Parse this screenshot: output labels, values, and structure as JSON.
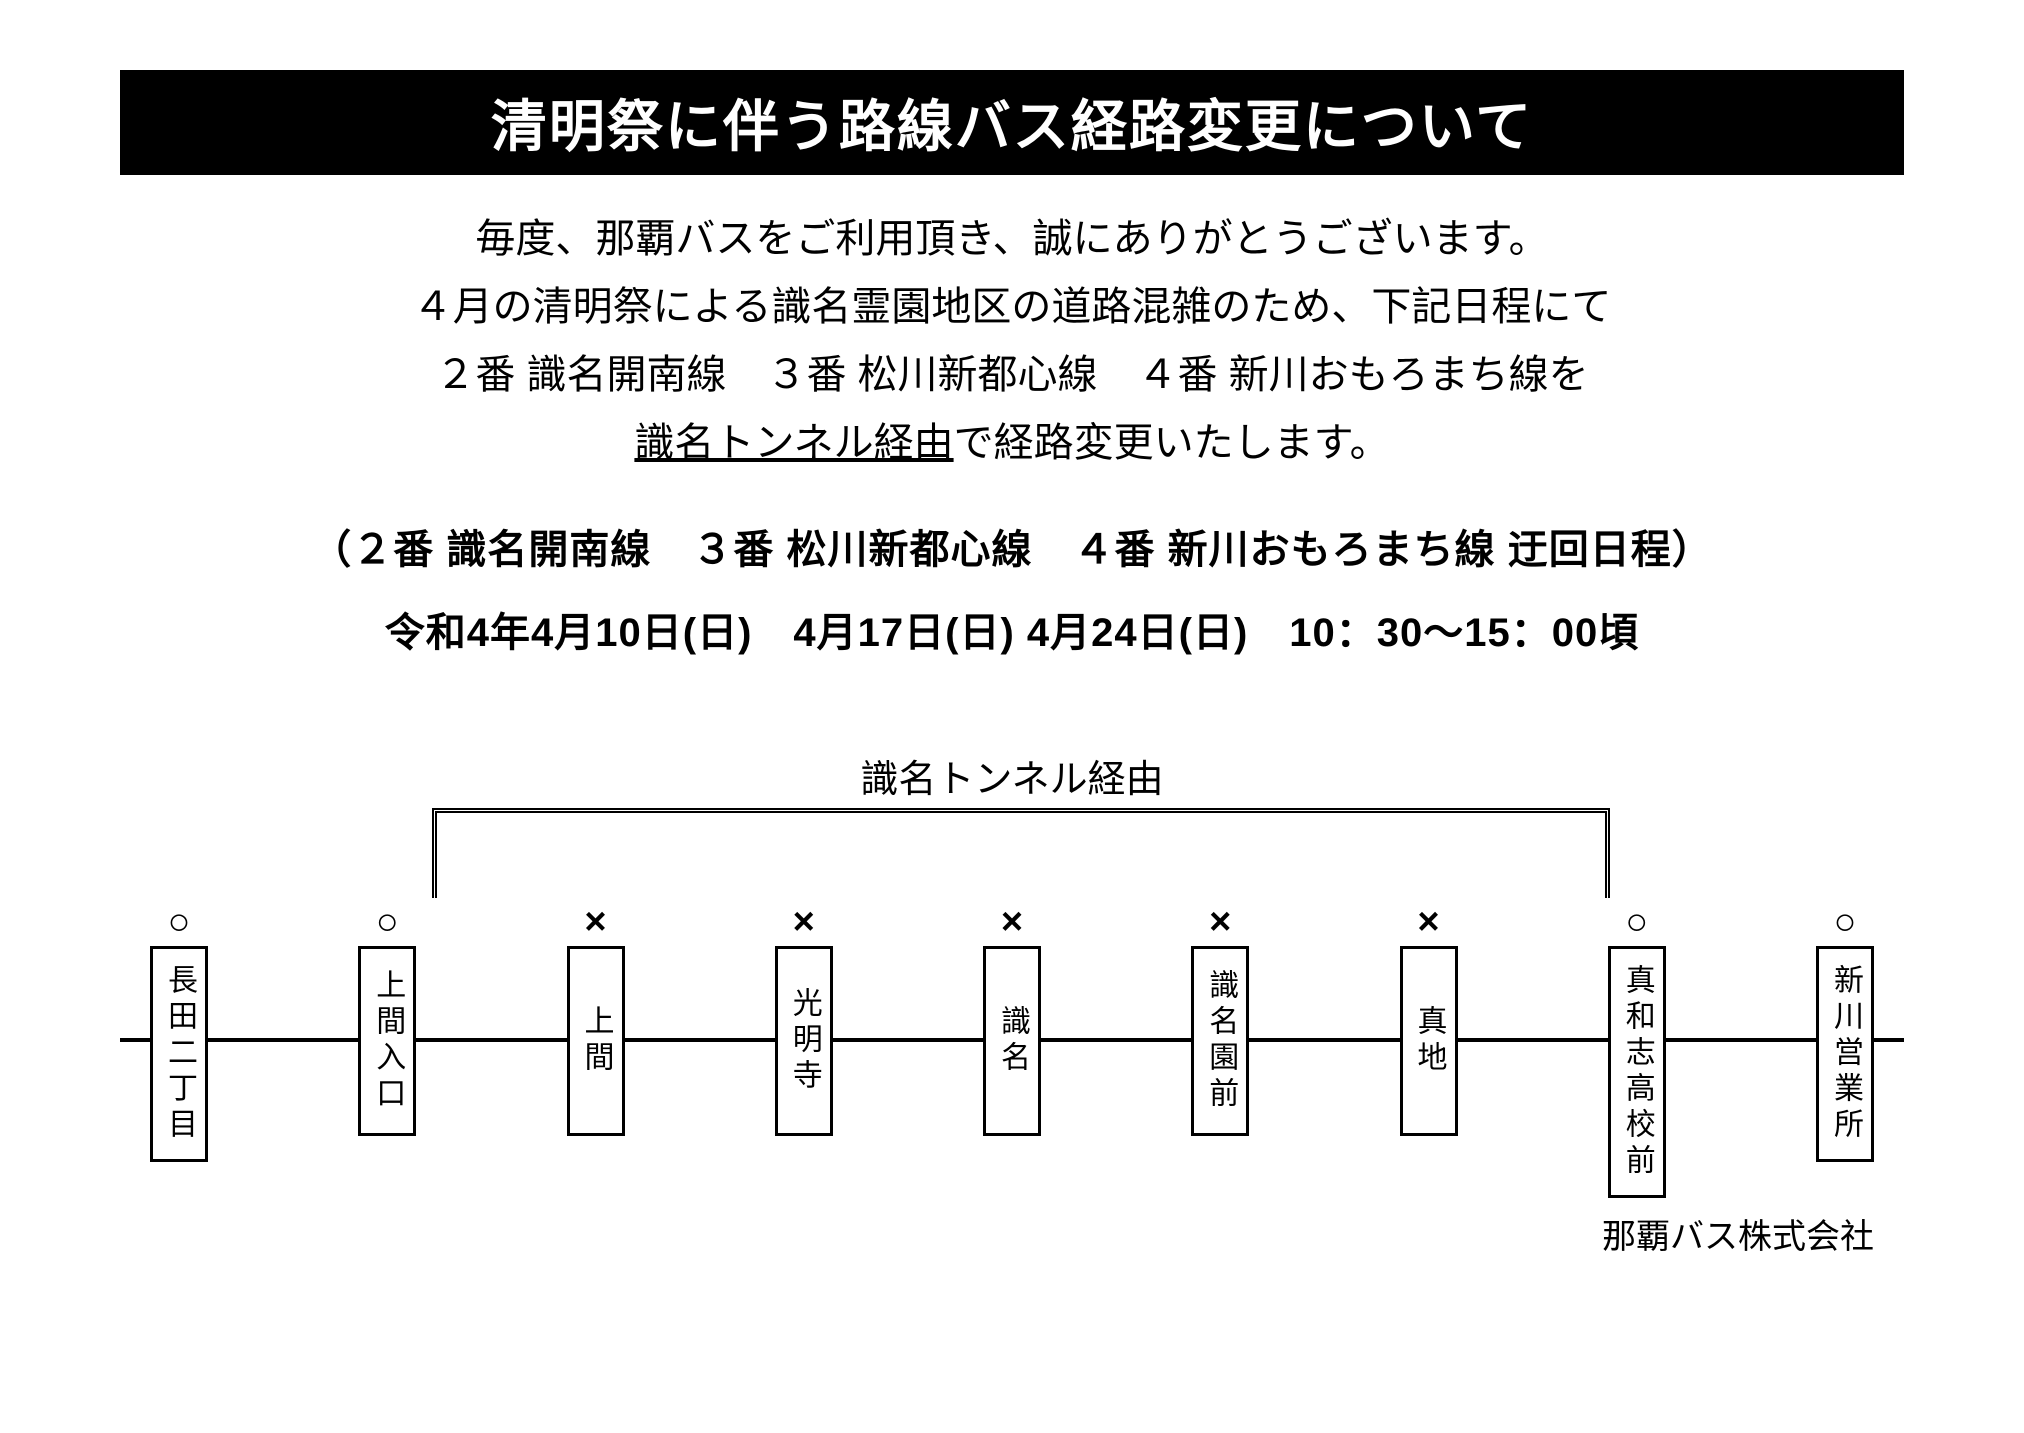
{
  "title": "清明祭に伴う路線バス経路変更について",
  "intro": {
    "line1": "毎度、那覇バスをご利用頂き、誠にありがとうございます。",
    "line2": "４月の清明祭による識名霊園地区の道路混雑のため、下記日程にて",
    "line3": "２番 識名開南線　３番 松川新都心線　４番 新川おもろまち線を",
    "line4_underlined": "識名トンネル経由",
    "line4_rest": "で経路変更いたします。"
  },
  "schedule": {
    "header": "（２番 識名開南線　３番 松川新都心線　４番 新川おもろまち線 迂回日程）",
    "dates": "令和4年4月10日(日)　4月17日(日) 4月24日(日)　10：30～15：00頃"
  },
  "diagram": {
    "detour_label": "識名トンネル経由",
    "stops": [
      {
        "name": "長田二丁目",
        "marker": "○",
        "skipped": false
      },
      {
        "name": "上間入口",
        "marker": "○",
        "skipped": false
      },
      {
        "name": "上間",
        "marker": "×",
        "skipped": true
      },
      {
        "name": "光明寺",
        "marker": "×",
        "skipped": true
      },
      {
        "name": "識名",
        "marker": "×",
        "skipped": true
      },
      {
        "name": "識名園前",
        "marker": "×",
        "skipped": true
      },
      {
        "name": "真地",
        "marker": "×",
        "skipped": true
      },
      {
        "name": "真和志高校前",
        "marker": "○",
        "skipped": false
      },
      {
        "name": "新川営業所",
        "marker": "○",
        "skipped": false
      }
    ],
    "bracket": {
      "left_percent": 17.5,
      "right_percent": 83.5
    },
    "line_color": "#000000",
    "box_border_color": "#000000",
    "background_color": "#ffffff",
    "marker_fontsize": 38,
    "stop_fontsize": 30
  },
  "company": "那覇バス株式会社",
  "colors": {
    "title_bg": "#000000",
    "title_fg": "#ffffff",
    "text": "#000000",
    "page_bg": "#ffffff"
  }
}
